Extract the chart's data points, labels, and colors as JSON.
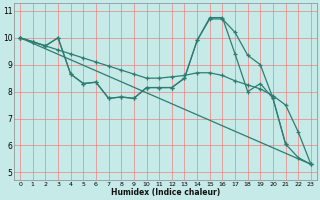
{
  "xlabel": "Humidex (Indice chaleur)",
  "bg_color": "#c5eae8",
  "grid_color": "#f08080",
  "line_color": "#2e7d72",
  "xlim": [
    -0.5,
    23.5
  ],
  "ylim": [
    4.7,
    11.3
  ],
  "xticks": [
    0,
    1,
    2,
    3,
    4,
    5,
    6,
    7,
    8,
    9,
    10,
    11,
    12,
    13,
    14,
    15,
    16,
    17,
    18,
    19,
    20,
    21,
    22,
    23
  ],
  "yticks": [
    5,
    6,
    7,
    8,
    9,
    10,
    11
  ],
  "lines": [
    {
      "x": [
        0,
        23
      ],
      "y": [
        10.0,
        5.3
      ]
    },
    {
      "x": [
        0,
        1,
        2,
        3,
        4,
        5,
        6,
        7,
        8,
        9,
        10,
        11,
        12,
        13,
        14,
        15,
        16,
        17,
        18,
        19,
        20,
        21,
        22,
        23
      ],
      "y": [
        10.0,
        9.85,
        9.7,
        9.55,
        9.4,
        9.25,
        9.1,
        8.95,
        8.8,
        8.65,
        8.5,
        8.5,
        8.55,
        8.6,
        8.7,
        8.7,
        8.6,
        8.4,
        8.25,
        8.1,
        7.85,
        7.5,
        6.5,
        5.3
      ]
    },
    {
      "x": [
        0,
        1,
        2,
        3,
        4,
        5,
        6,
        7,
        8,
        9,
        10,
        11,
        12,
        13,
        14,
        15,
        16,
        17,
        18,
        19,
        20,
        21,
        22,
        23
      ],
      "y": [
        10.0,
        9.85,
        9.7,
        10.0,
        8.65,
        8.3,
        8.35,
        7.75,
        7.8,
        7.75,
        8.15,
        8.15,
        8.15,
        8.5,
        9.9,
        10.7,
        10.7,
        10.2,
        9.35,
        9.0,
        7.75,
        6.05,
        5.55,
        5.3
      ]
    },
    {
      "x": [
        0,
        1,
        2,
        3,
        4,
        5,
        6,
        7,
        8,
        9,
        10,
        11,
        12,
        13,
        14,
        15,
        16,
        17,
        18,
        19,
        20,
        21
      ],
      "y": [
        10.0,
        9.85,
        9.7,
        10.0,
        8.65,
        8.3,
        8.35,
        7.75,
        7.8,
        7.75,
        8.15,
        8.15,
        8.15,
        8.5,
        9.9,
        10.75,
        10.75,
        9.4,
        8.0,
        8.3,
        7.75,
        6.05
      ]
    }
  ]
}
